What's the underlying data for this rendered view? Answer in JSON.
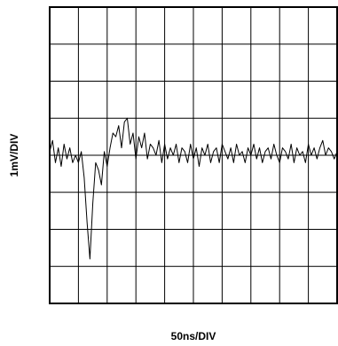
{
  "chart_data": {
    "type": "line",
    "title": "",
    "xlabel": "50ns/DIV",
    "ylabel": "1mV/DIV",
    "x_unit": "ns",
    "y_unit": "mV",
    "xlim": [
      0,
      500
    ],
    "ylim": [
      -4,
      4
    ],
    "x_divisions": 10,
    "y_divisions": 8,
    "grid": true,
    "colors": {
      "trace": "#000000",
      "grid": "#000000",
      "background": "#ffffff"
    },
    "series": [
      {
        "x": [
          0,
          5,
          10,
          15,
          20,
          25,
          30,
          35,
          40,
          45,
          50,
          55,
          60,
          65,
          70,
          75,
          80,
          85,
          90,
          95,
          100,
          105,
          110,
          115,
          120,
          125,
          130,
          135,
          140,
          145,
          150,
          155,
          160,
          165,
          170,
          175,
          180,
          185,
          190,
          195,
          200,
          205,
          210,
          215,
          220,
          225,
          230,
          235,
          240,
          245,
          250,
          255,
          260,
          265,
          270,
          275,
          280,
          285,
          290,
          295,
          300,
          305,
          310,
          315,
          320,
          325,
          330,
          335,
          340,
          345,
          350,
          355,
          360,
          365,
          370,
          375,
          380,
          385,
          390,
          395,
          400,
          405,
          410,
          415,
          420,
          425,
          430,
          435,
          440,
          445,
          450,
          455,
          460,
          465,
          470,
          475,
          480,
          485,
          490,
          495,
          500
        ],
        "values": [
          0.1,
          0.4,
          -0.2,
          0.2,
          -0.3,
          0.3,
          -0.1,
          0.2,
          -0.2,
          0.0,
          -0.2,
          0.1,
          -0.6,
          -1.8,
          -2.8,
          -1.3,
          -0.2,
          -0.4,
          -0.8,
          0.1,
          -0.3,
          0.2,
          0.6,
          0.5,
          0.8,
          0.2,
          0.9,
          1.0,
          0.3,
          0.6,
          -0.1,
          0.5,
          0.2,
          0.6,
          -0.1,
          0.3,
          0.2,
          0.0,
          0.4,
          -0.2,
          0.3,
          -0.1,
          0.2,
          0.0,
          0.3,
          -0.2,
          0.2,
          0.1,
          -0.2,
          0.3,
          -0.1,
          0.2,
          -0.3,
          0.2,
          0.0,
          0.3,
          -0.2,
          0.1,
          0.2,
          -0.2,
          0.3,
          0.1,
          -0.1,
          0.2,
          -0.2,
          0.3,
          0.0,
          0.1,
          -0.2,
          0.2,
          0.0,
          0.3,
          -0.1,
          0.2,
          -0.2,
          0.1,
          0.2,
          -0.1,
          0.3,
          0.0,
          -0.2,
          0.2,
          0.1,
          -0.1,
          0.3,
          -0.2,
          0.2,
          0.0,
          0.1,
          -0.2,
          0.3,
          0.0,
          0.2,
          -0.1,
          0.2,
          0.4,
          0.0,
          0.2,
          0.1,
          -0.1,
          0.1
        ]
      }
    ]
  }
}
